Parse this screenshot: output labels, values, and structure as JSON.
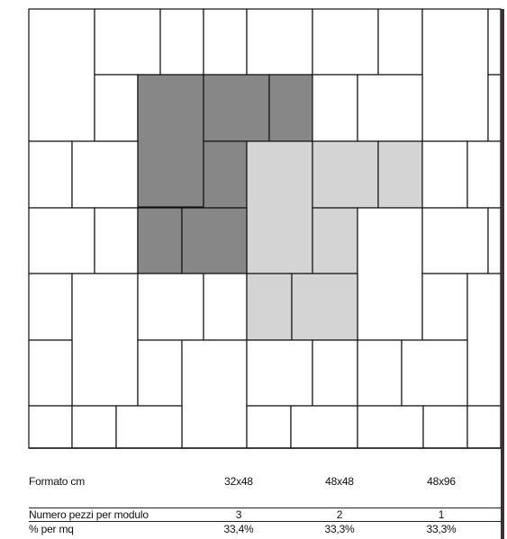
{
  "colors": {
    "dark": "#878787",
    "light": "#d4d4d4",
    "white": "#ffffff",
    "line": "#111111"
  },
  "table": {
    "header": {
      "label": "Formato cm",
      "values": [
        "32x48",
        "48x48",
        "48x96"
      ]
    },
    "rows": [
      {
        "label": "Numero pezzi per modulo",
        "values": [
          "3",
          "2",
          "1"
        ]
      },
      {
        "label": "% per mq",
        "values": [
          "33,4%",
          "33,3%",
          "33,3%"
        ]
      }
    ]
  }
}
